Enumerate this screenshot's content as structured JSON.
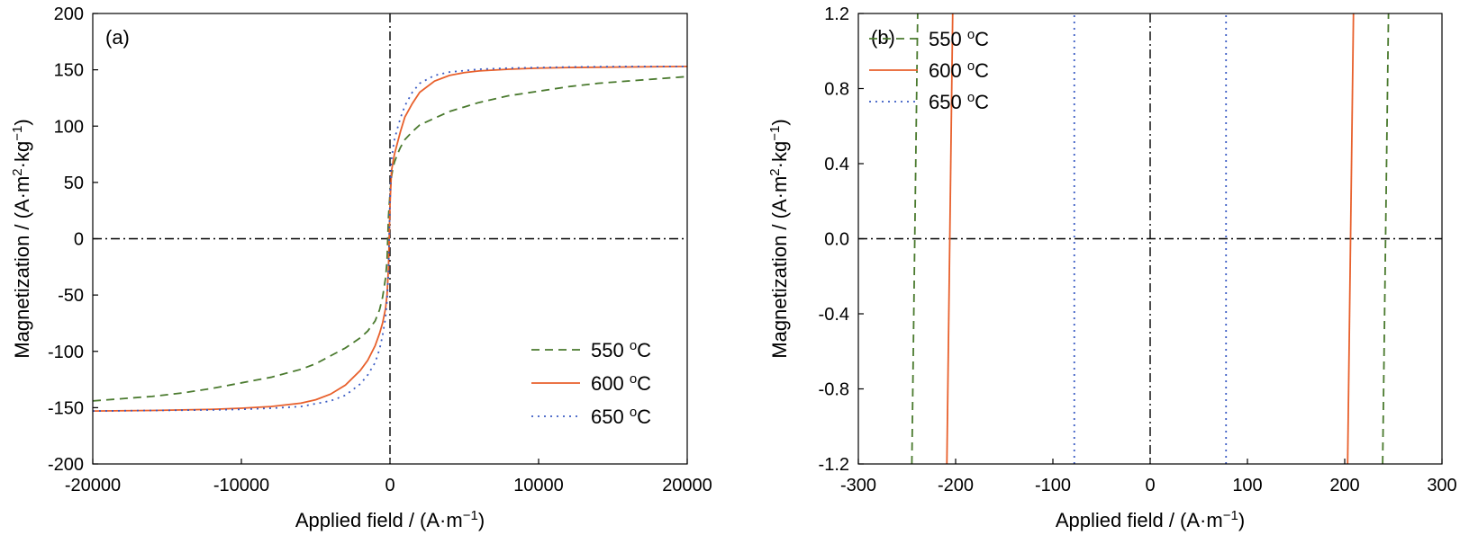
{
  "chart_data": [
    {
      "type": "line",
      "panel_label": "(a)",
      "xlabel": {
        "main": "Applied field / (A·m",
        "sup": "−1",
        "tail": ")"
      },
      "ylabel": {
        "p1": "Magnetization / (A·m",
        "sup1": "2",
        "p2": "·kg",
        "sup2": "−1",
        "p3": ")"
      },
      "xlim": [
        -20000,
        20000
      ],
      "ylim": [
        -200,
        200
      ],
      "xticks": [
        "-20000",
        "-10000",
        "0",
        "10000",
        "20000"
      ],
      "yticks": [
        "-200",
        "-150",
        "-100",
        "-50",
        "0",
        "50",
        "100",
        "150",
        "200"
      ],
      "reference_lines": {
        "x": 0,
        "y": 0,
        "style": "dash-dot"
      },
      "legend_position": "bottom-right",
      "series": [
        {
          "name": "550 °C",
          "legend_text": "550 ",
          "legend_sup": "o",
          "legend_unit": "C",
          "color": "#4a7a2e",
          "dash": "dashed",
          "x": [
            -20000,
            -18000,
            -16000,
            -14000,
            -12000,
            -10000,
            -8000,
            -6000,
            -5000,
            -4000,
            -3000,
            -2000,
            -1500,
            -1000,
            -700,
            -500,
            -300,
            -200,
            -100,
            0,
            100,
            200,
            300,
            500,
            700,
            1000,
            1500,
            2000,
            3000,
            4000,
            5000,
            6000,
            8000,
            10000,
            12000,
            14000,
            16000,
            18000,
            20000
          ],
          "y": [
            -144,
            -142,
            -140,
            -137,
            -133,
            -128,
            -123,
            -116,
            -111,
            -104,
            -97,
            -88,
            -82,
            -73,
            -63,
            -52,
            -35,
            -20,
            20,
            40,
            55,
            63,
            68,
            75,
            81,
            88,
            95,
            101,
            107,
            113,
            117,
            121,
            127,
            131,
            135,
            138,
            140,
            142,
            144
          ]
        },
        {
          "name": "600 °C",
          "legend_text": "600 ",
          "legend_sup": "o",
          "legend_unit": "C",
          "color": "#e8602c",
          "dash": "solid",
          "x": [
            -20000,
            -16000,
            -12000,
            -10000,
            -8000,
            -6000,
            -5000,
            -4000,
            -3000,
            -2000,
            -1500,
            -1000,
            -700,
            -500,
            -300,
            -200,
            -100,
            0,
            100,
            200,
            300,
            500,
            700,
            1000,
            1500,
            2000,
            3000,
            4000,
            5000,
            6000,
            8000,
            10000,
            12000,
            16000,
            20000
          ],
          "y": [
            -153,
            -152.5,
            -151.5,
            -150.5,
            -149,
            -146,
            -143,
            -138,
            -130,
            -117,
            -108,
            -95,
            -84,
            -75,
            -62,
            -50,
            -25,
            30,
            60,
            68,
            75,
            85,
            95,
            108,
            120,
            130,
            140,
            145,
            147.5,
            149,
            150.5,
            151.5,
            152,
            152.5,
            153
          ]
        },
        {
          "name": "650 °C",
          "legend_text": "650 ",
          "legend_sup": "o",
          "legend_unit": "C",
          "color": "#3b5cc4",
          "dash": "dotted",
          "x": [
            -20000,
            -16000,
            -12000,
            -10000,
            -8000,
            -6000,
            -4000,
            -3000,
            -2000,
            -1500,
            -1000,
            -700,
            -500,
            -300,
            -200,
            -100,
            0,
            100,
            200,
            300,
            500,
            700,
            1000,
            1500,
            2000,
            3000,
            4000,
            6000,
            8000,
            10000,
            12000,
            16000,
            20000
          ],
          "y": [
            -153,
            -152.5,
            -152,
            -151.5,
            -150.5,
            -149,
            -144,
            -139,
            -129,
            -121,
            -110,
            -98,
            -86,
            -70,
            -55,
            -30,
            35,
            70,
            80,
            88,
            98,
            107,
            118,
            130,
            138,
            145,
            148,
            150.5,
            151.5,
            152,
            152.5,
            153,
            153
          ]
        }
      ]
    },
    {
      "type": "line",
      "panel_label": "(b)",
      "xlabel": {
        "main": "Applied field / (A·m",
        "sup": "−1",
        "tail": ")"
      },
      "ylabel": {
        "p1": "Magnetization / (A·m",
        "sup1": "2",
        "p2": "·kg",
        "sup2": "−1",
        "p3": ")"
      },
      "xlim": [
        -300,
        300
      ],
      "ylim": [
        -1.2,
        1.2
      ],
      "xticks": [
        "-300",
        "-200",
        "-100",
        "0",
        "100",
        "200",
        "300"
      ],
      "yticks": [
        "-1.2",
        "-0.8",
        "-0.4",
        "0.0",
        "0.4",
        "0.8",
        "1.2"
      ],
      "reference_lines": {
        "x": 0,
        "y": 0,
        "style": "dash-dot"
      },
      "legend_position": "top-left",
      "series": [
        {
          "name": "550 °C",
          "legend_text": "550 ",
          "legend_sup": "o",
          "legend_unit": "C",
          "color": "#4a7a2e",
          "dash": "dashed",
          "segments": [
            {
              "x": [
                -245,
                -239
              ],
              "y": [
                -1.2,
                1.2
              ]
            },
            {
              "x": [
                239,
                245
              ],
              "y": [
                -1.2,
                1.2
              ]
            }
          ]
        },
        {
          "name": "600 °C",
          "legend_text": "600 ",
          "legend_sup": "o",
          "legend_unit": "C",
          "color": "#e8602c",
          "dash": "solid",
          "segments": [
            {
              "x": [
                -209,
                -203
              ],
              "y": [
                -1.2,
                1.2
              ]
            },
            {
              "x": [
                203,
                209
              ],
              "y": [
                -1.2,
                1.2
              ]
            }
          ]
        },
        {
          "name": "650 °C",
          "legend_text": "650 ",
          "legend_sup": "o",
          "legend_unit": "C",
          "color": "#3b5cc4",
          "dash": "dotted",
          "segments": [
            {
              "x": [
                -78,
                -78
              ],
              "y": [
                -1.2,
                1.2
              ]
            },
            {
              "x": [
                78,
                78
              ],
              "y": [
                -1.2,
                1.2
              ]
            }
          ]
        }
      ]
    }
  ]
}
